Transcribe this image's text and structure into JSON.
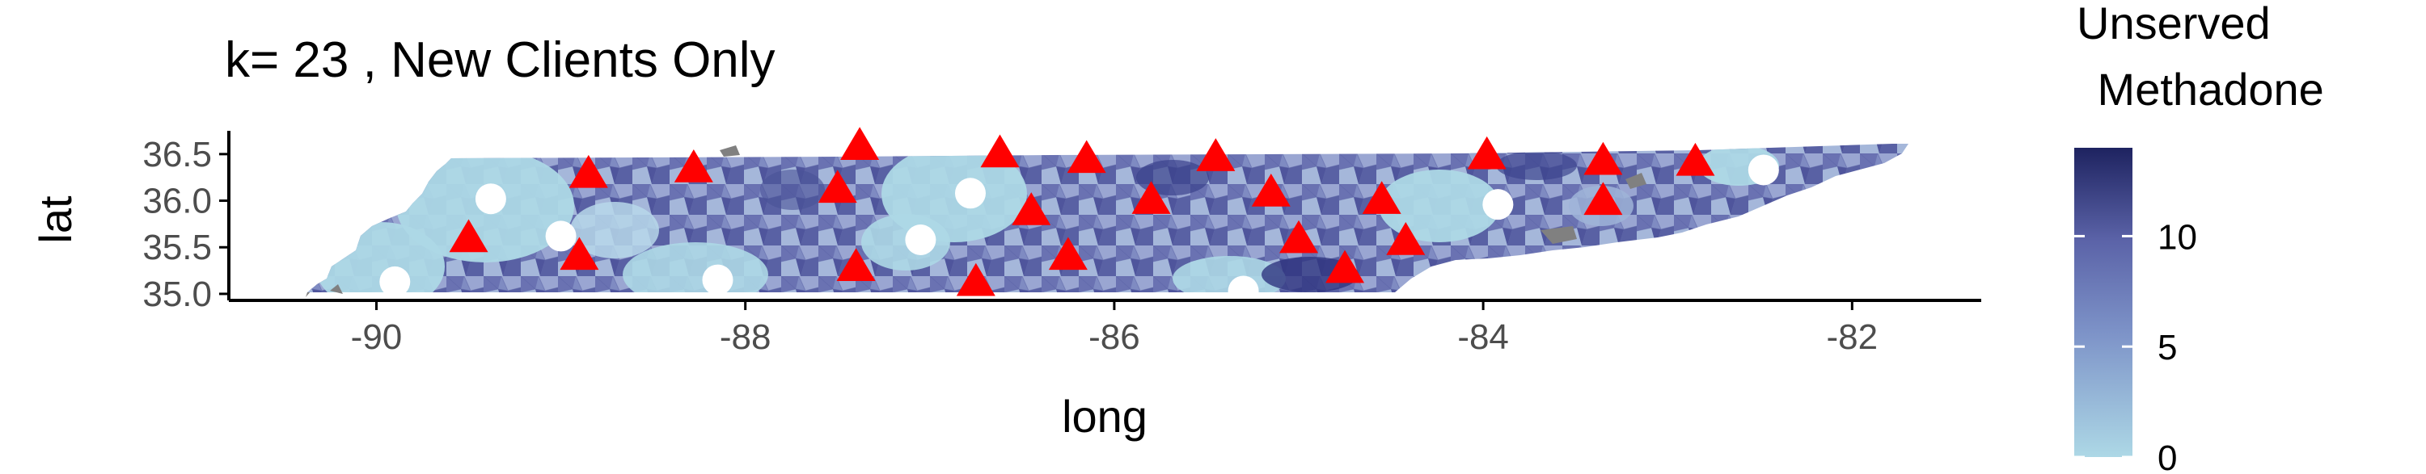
{
  "chart_data": {
    "type": "map",
    "title": "k= 23 , New Clients Only",
    "xlabel": "long",
    "ylabel": "lat",
    "xlim": [
      -90.8,
      -81.3
    ],
    "ylim": [
      34.93,
      36.75
    ],
    "x_ticks": [
      -90,
      -88,
      -86,
      -84,
      -82
    ],
    "x_tick_labels": [
      "-90",
      "-88",
      "-86",
      "-84",
      "-82"
    ],
    "y_ticks": [
      35.0,
      35.5,
      36.0,
      36.5
    ],
    "y_tick_labels": [
      "35.0",
      "35.5",
      "36.0",
      "36.5"
    ],
    "legend": {
      "title_lines": [
        "Unserved",
        " Methadone"
      ],
      "range": [
        0,
        14
      ],
      "ticks": [
        0,
        5,
        10
      ],
      "tick_labels": [
        "0",
        "5",
        "10"
      ],
      "low_color": "#add8e6",
      "mid_color": "#5b63a8",
      "high_color": "#1e2360",
      "placement": "right"
    },
    "series": [
      {
        "marker": "circle",
        "color": "#ffffff",
        "points": [
          {
            "x": -89.9,
            "y": 35.13
          },
          {
            "x": -89.38,
            "y": 36.02
          },
          {
            "x": -89.0,
            "y": 35.62
          },
          {
            "x": -88.15,
            "y": 35.15
          },
          {
            "x": -87.05,
            "y": 35.58
          },
          {
            "x": -86.78,
            "y": 36.08
          },
          {
            "x": -85.3,
            "y": 35.03
          },
          {
            "x": -83.92,
            "y": 35.96
          },
          {
            "x": -82.48,
            "y": 36.33
          }
        ]
      },
      {
        "marker": "triangle",
        "color": "#ff0000",
        "points": [
          {
            "x": -89.5,
            "y": 35.61
          },
          {
            "x": -88.9,
            "y": 35.42
          },
          {
            "x": -88.85,
            "y": 36.3
          },
          {
            "x": -88.28,
            "y": 36.36
          },
          {
            "x": -87.5,
            "y": 36.14
          },
          {
            "x": -87.4,
            "y": 35.3
          },
          {
            "x": -87.38,
            "y": 36.6
          },
          {
            "x": -86.75,
            "y": 35.14
          },
          {
            "x": -86.62,
            "y": 36.52
          },
          {
            "x": -86.45,
            "y": 35.9
          },
          {
            "x": -86.25,
            "y": 35.42
          },
          {
            "x": -86.15,
            "y": 36.46
          },
          {
            "x": -85.8,
            "y": 36.02
          },
          {
            "x": -85.45,
            "y": 36.48
          },
          {
            "x": -85.15,
            "y": 36.1
          },
          {
            "x": -85.0,
            "y": 35.6
          },
          {
            "x": -84.75,
            "y": 35.28
          },
          {
            "x": -84.55,
            "y": 36.02
          },
          {
            "x": -84.42,
            "y": 35.58
          },
          {
            "x": -83.98,
            "y": 36.5
          },
          {
            "x": -83.35,
            "y": 36.01
          },
          {
            "x": -83.35,
            "y": 36.44
          },
          {
            "x": -82.85,
            "y": 36.43
          }
        ]
      }
    ]
  }
}
